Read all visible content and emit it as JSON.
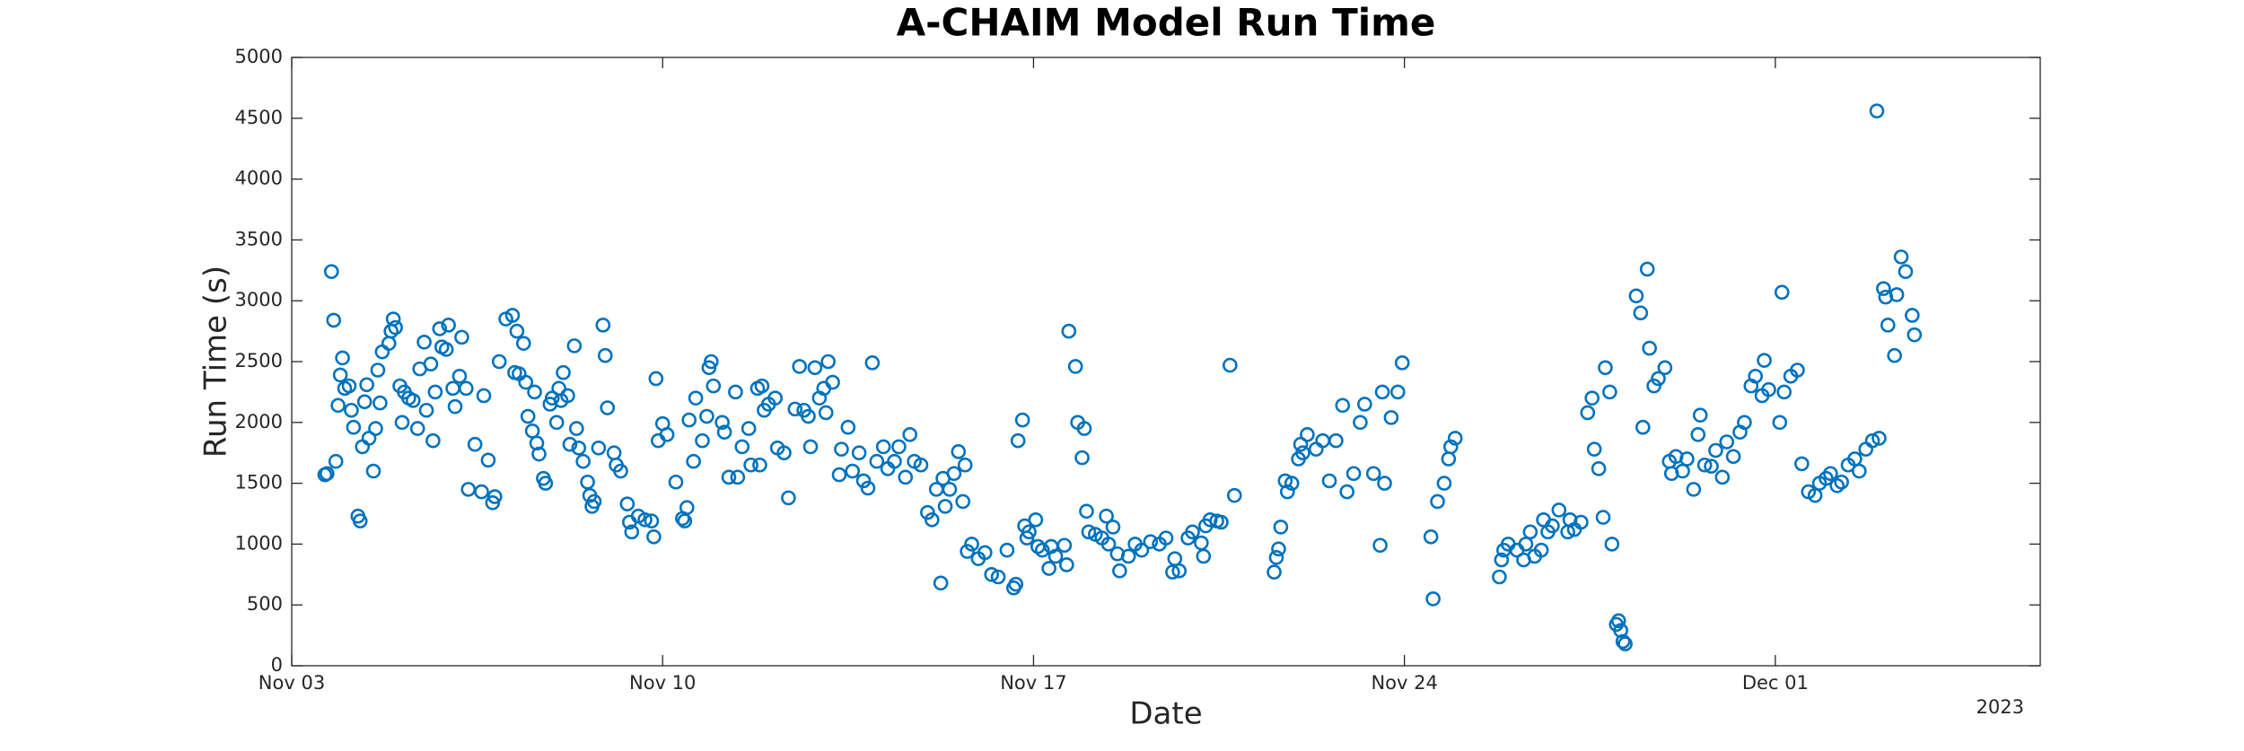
{
  "chart_data": {
    "type": "scatter",
    "title": "A-CHAIM Model Run Time",
    "xlabel": "Date",
    "ylabel": "Run Time (s)",
    "x_secondary_label": "2023",
    "color": "#0072BD",
    "xlim": [
      "2023-11-03T00:00Z",
      "2023-12-06T00:00Z"
    ],
    "xticks": [
      {
        "value": "2023-11-03T00:00Z",
        "label": "Nov 03"
      },
      {
        "value": "2023-11-10T00:00Z",
        "label": "Nov 10"
      },
      {
        "value": "2023-11-17T00:00Z",
        "label": "Nov 17"
      },
      {
        "value": "2023-11-24T00:00Z",
        "label": "Nov 24"
      },
      {
        "value": "2023-12-01T00:00Z",
        "label": "Dec 01"
      }
    ],
    "ylim": [
      0,
      5000
    ],
    "yticks": [
      0,
      500,
      1000,
      1500,
      2000,
      2500,
      3000,
      3500,
      4000,
      4500,
      5000
    ],
    "x": [
      "2023-11-03T15:00Z",
      "2023-11-03T16:00Z",
      "2023-11-03T18:00Z",
      "2023-11-03T19:00Z",
      "2023-11-03T20:00Z",
      "2023-11-03T21:00Z",
      "2023-11-03T22:00Z",
      "2023-11-03T23:00Z",
      "2023-11-04T00:00Z",
      "2023-11-04T02:00Z",
      "2023-11-04T03:00Z",
      "2023-11-04T04:00Z",
      "2023-11-04T06:00Z",
      "2023-11-04T07:00Z",
      "2023-11-04T08:00Z",
      "2023-11-04T09:00Z",
      "2023-11-04T10:00Z",
      "2023-11-04T11:00Z",
      "2023-11-04T13:00Z",
      "2023-11-04T14:00Z",
      "2023-11-04T15:00Z",
      "2023-11-04T16:00Z",
      "2023-11-04T17:00Z",
      "2023-11-04T20:00Z",
      "2023-11-04T21:00Z",
      "2023-11-04T22:00Z",
      "2023-11-04T23:00Z",
      "2023-11-05T01:00Z",
      "2023-11-05T02:00Z",
      "2023-11-05T03:00Z",
      "2023-11-05T05:00Z",
      "2023-11-05T07:00Z",
      "2023-11-05T09:00Z",
      "2023-11-05T10:00Z",
      "2023-11-05T12:00Z",
      "2023-11-05T13:00Z",
      "2023-11-05T15:00Z",
      "2023-11-05T16:00Z",
      "2023-11-05T17:00Z",
      "2023-11-05T19:00Z",
      "2023-11-05T20:00Z",
      "2023-11-05T22:00Z",
      "2023-11-05T23:00Z",
      "2023-11-06T01:00Z",
      "2023-11-06T02:00Z",
      "2023-11-06T04:00Z",
      "2023-11-06T05:00Z",
      "2023-11-06T07:00Z",
      "2023-11-06T08:00Z",
      "2023-11-06T11:00Z",
      "2023-11-06T14:00Z",
      "2023-11-06T15:00Z",
      "2023-11-06T17:00Z",
      "2023-11-06T19:00Z",
      "2023-11-06T20:00Z",
      "2023-11-06T22:00Z",
      "2023-11-07T01:00Z",
      "2023-11-07T04:00Z",
      "2023-11-07T05:00Z",
      "2023-11-07T06:00Z",
      "2023-11-07T07:00Z",
      "2023-11-07T09:00Z",
      "2023-11-07T10:00Z",
      "2023-11-07T11:00Z",
      "2023-11-07T13:00Z",
      "2023-11-07T14:00Z",
      "2023-11-07T15:00Z",
      "2023-11-07T16:00Z",
      "2023-11-07T18:00Z",
      "2023-11-07T19:00Z",
      "2023-11-07T21:00Z",
      "2023-11-07T22:00Z",
      "2023-11-08T00:00Z",
      "2023-11-08T01:00Z",
      "2023-11-08T02:00Z",
      "2023-11-08T03:00Z",
      "2023-11-08T05:00Z",
      "2023-11-08T06:00Z",
      "2023-11-08T08:00Z",
      "2023-11-08T09:00Z",
      "2023-11-08T10:00Z",
      "2023-11-08T12:00Z",
      "2023-11-08T14:00Z",
      "2023-11-08T15:00Z",
      "2023-11-08T16:00Z",
      "2023-11-08T17:00Z",
      "2023-11-08T19:00Z",
      "2023-11-08T21:00Z",
      "2023-11-08T22:00Z",
      "2023-11-08T23:00Z",
      "2023-11-09T02:00Z",
      "2023-11-09T03:00Z",
      "2023-11-09T05:00Z",
      "2023-11-09T08:00Z",
      "2023-11-09T09:00Z",
      "2023-11-09T10:00Z",
      "2023-11-09T13:00Z",
      "2023-11-09T16:00Z",
      "2023-11-09T19:00Z",
      "2023-11-09T20:00Z",
      "2023-11-09T21:00Z",
      "2023-11-09T22:00Z",
      "2023-11-10T00:00Z",
      "2023-11-10T02:00Z",
      "2023-11-10T06:00Z",
      "2023-11-10T09:00Z",
      "2023-11-10T10:00Z",
      "2023-11-10T11:00Z",
      "2023-11-10T12:00Z",
      "2023-11-10T14:00Z",
      "2023-11-10T15:00Z",
      "2023-11-10T18:00Z",
      "2023-11-10T20:00Z",
      "2023-11-10T21:00Z",
      "2023-11-10T22:00Z",
      "2023-11-10T23:00Z",
      "2023-11-11T03:00Z",
      "2023-11-11T04:00Z",
      "2023-11-11T06:00Z",
      "2023-11-11T09:00Z",
      "2023-11-11T10:00Z",
      "2023-11-11T12:00Z",
      "2023-11-11T15:00Z",
      "2023-11-11T16:00Z",
      "2023-11-11T19:00Z",
      "2023-11-11T20:00Z",
      "2023-11-11T21:00Z",
      "2023-11-11T22:00Z",
      "2023-11-12T00:00Z",
      "2023-11-12T03:00Z",
      "2023-11-12T04:00Z",
      "2023-11-12T07:00Z",
      "2023-11-12T09:00Z",
      "2023-11-12T12:00Z",
      "2023-11-12T14:00Z",
      "2023-11-12T16:00Z",
      "2023-11-12T18:00Z",
      "2023-11-12T19:00Z",
      "2023-11-12T21:00Z",
      "2023-11-12T23:00Z",
      "2023-11-13T01:00Z",
      "2023-11-13T02:00Z",
      "2023-11-13T03:00Z",
      "2023-11-13T05:00Z",
      "2023-11-13T08:00Z",
      "2023-11-13T09:00Z",
      "2023-11-13T12:00Z",
      "2023-11-13T14:00Z",
      "2023-11-13T17:00Z",
      "2023-11-13T19:00Z",
      "2023-11-13T21:00Z",
      "2023-11-13T23:00Z",
      "2023-11-14T01:00Z",
      "2023-11-14T04:00Z",
      "2023-11-14T06:00Z",
      "2023-11-14T09:00Z",
      "2023-11-14T11:00Z",
      "2023-11-14T14:00Z",
      "2023-11-14T16:00Z",
      "2023-11-14T18:00Z",
      "2023-11-14T21:00Z",
      "2023-11-15T00:00Z",
      "2023-11-15T02:00Z",
      "2023-11-15T04:00Z",
      "2023-11-15T06:00Z",
      "2023-11-15T07:00Z",
      "2023-11-15T08:00Z",
      "2023-11-15T10:00Z",
      "2023-11-15T12:00Z",
      "2023-11-15T14:00Z",
      "2023-11-15T16:00Z",
      "2023-11-15T17:00Z",
      "2023-11-15T18:00Z",
      "2023-11-15T20:00Z",
      "2023-11-15T23:00Z",
      "2023-11-16T02:00Z",
      "2023-11-16T05:00Z",
      "2023-11-16T08:00Z",
      "2023-11-16T12:00Z",
      "2023-11-16T15:00Z",
      "2023-11-16T16:00Z",
      "2023-11-16T17:00Z",
      "2023-11-16T19:00Z",
      "2023-11-16T20:00Z",
      "2023-11-16T21:00Z",
      "2023-11-16T22:00Z",
      "2023-11-17T01:00Z",
      "2023-11-17T02:00Z",
      "2023-11-17T04:00Z",
      "2023-11-17T07:00Z",
      "2023-11-17T08:00Z",
      "2023-11-17T10:00Z",
      "2023-11-17T14:00Z",
      "2023-11-17T15:00Z",
      "2023-11-17T16:00Z",
      "2023-11-17T19:00Z",
      "2023-11-17T20:00Z",
      "2023-11-17T22:00Z",
      "2023-11-17T23:00Z",
      "2023-11-18T00:00Z",
      "2023-11-18T01:00Z",
      "2023-11-18T04:00Z",
      "2023-11-18T07:00Z",
      "2023-11-18T09:00Z",
      "2023-11-18T10:00Z",
      "2023-11-18T12:00Z",
      "2023-11-18T14:00Z",
      "2023-11-18T15:00Z",
      "2023-11-18T19:00Z",
      "2023-11-18T22:00Z",
      "2023-11-19T01:00Z",
      "2023-11-19T05:00Z",
      "2023-11-19T09:00Z",
      "2023-11-19T12:00Z",
      "2023-11-19T15:00Z",
      "2023-11-19T16:00Z",
      "2023-11-19T18:00Z",
      "2023-11-19T22:00Z",
      "2023-11-20T00:00Z",
      "2023-11-20T04:00Z",
      "2023-11-20T05:00Z",
      "2023-11-20T06:00Z",
      "2023-11-20T08:00Z",
      "2023-11-20T11:00Z",
      "2023-11-20T13:00Z",
      "2023-11-20T17:00Z",
      "2023-11-20T19:00Z",
      "2023-11-21T13:00Z",
      "2023-11-21T14:00Z",
      "2023-11-21T15:00Z",
      "2023-11-21T16:00Z",
      "2023-11-21T18:00Z",
      "2023-11-21T19:00Z",
      "2023-11-21T21:00Z",
      "2023-11-22T00:00Z",
      "2023-11-22T01:00Z",
      "2023-11-22T02:00Z",
      "2023-11-22T04:00Z",
      "2023-11-22T08:00Z",
      "2023-11-22T11:00Z",
      "2023-11-22T14:00Z",
      "2023-11-22T17:00Z",
      "2023-11-22T20:00Z",
      "2023-11-22T22:00Z",
      "2023-11-23T01:00Z",
      "2023-11-23T04:00Z",
      "2023-11-23T06:00Z",
      "2023-11-23T10:00Z",
      "2023-11-23T13:00Z",
      "2023-11-23T14:00Z",
      "2023-11-23T15:00Z",
      "2023-11-23T18:00Z",
      "2023-11-23T21:00Z",
      "2023-11-23T23:00Z",
      "2023-11-24T12:00Z",
      "2023-11-24T13:00Z",
      "2023-11-24T15:00Z",
      "2023-11-24T18:00Z",
      "2023-11-24T20:00Z",
      "2023-11-24T21:00Z",
      "2023-11-24T23:00Z",
      "2023-11-25T19:00Z",
      "2023-11-25T20:00Z",
      "2023-11-25T21:00Z",
      "2023-11-25T23:00Z",
      "2023-11-26T03:00Z",
      "2023-11-26T06:00Z",
      "2023-11-26T07:00Z",
      "2023-11-26T09:00Z",
      "2023-11-26T11:00Z",
      "2023-11-26T14:00Z",
      "2023-11-26T15:00Z",
      "2023-11-26T17:00Z",
      "2023-11-26T19:00Z",
      "2023-11-26T22:00Z",
      "2023-11-27T02:00Z",
      "2023-11-27T03:00Z",
      "2023-11-27T05:00Z",
      "2023-11-27T08:00Z",
      "2023-11-27T11:00Z",
      "2023-11-27T13:00Z",
      "2023-11-27T14:00Z",
      "2023-11-27T16:00Z",
      "2023-11-27T18:00Z",
      "2023-11-27T19:00Z",
      "2023-11-27T21:00Z",
      "2023-11-27T22:00Z",
      "2023-11-28T00:00Z",
      "2023-11-28T01:00Z",
      "2023-11-28T02:00Z",
      "2023-11-28T03:00Z",
      "2023-11-28T04:00Z",
      "2023-11-28T09:00Z",
      "2023-11-28T11:00Z",
      "2023-11-28T12:00Z",
      "2023-11-28T14:00Z",
      "2023-11-28T15:00Z",
      "2023-11-28T17:00Z",
      "2023-11-28T19:00Z",
      "2023-11-28T22:00Z",
      "2023-11-29T00:00Z",
      "2023-11-29T01:00Z",
      "2023-11-29T03:00Z",
      "2023-11-29T06:00Z",
      "2023-11-29T08:00Z",
      "2023-11-29T11:00Z",
      "2023-11-29T13:00Z",
      "2023-11-29T14:00Z",
      "2023-11-29T16:00Z",
      "2023-11-29T19:00Z",
      "2023-11-29T21:00Z",
      "2023-11-30T00:00Z",
      "2023-11-30T02:00Z",
      "2023-11-30T05:00Z",
      "2023-11-30T08:00Z",
      "2023-11-30T10:00Z",
      "2023-11-30T13:00Z",
      "2023-11-30T15:00Z",
      "2023-11-30T18:00Z",
      "2023-11-30T19:00Z",
      "2023-11-30T21:00Z",
      "2023-12-01T02:00Z",
      "2023-12-01T03:00Z",
      "2023-12-01T04:00Z",
      "2023-12-01T07:00Z",
      "2023-12-01T10:00Z",
      "2023-12-01T12:00Z",
      "2023-12-01T15:00Z",
      "2023-12-01T18:00Z",
      "2023-12-01T20:00Z",
      "2023-12-01T23:00Z",
      "2023-12-02T01:00Z",
      "2023-12-02T04:00Z",
      "2023-12-02T06:00Z",
      "2023-12-02T09:00Z",
      "2023-12-02T12:00Z",
      "2023-12-02T14:00Z",
      "2023-12-02T17:00Z",
      "2023-12-02T20:00Z",
      "2023-12-02T22:00Z",
      "2023-12-02T23:00Z",
      "2023-12-03T01:00Z",
      "2023-12-03T02:00Z",
      "2023-12-03T03:00Z",
      "2023-12-03T06:00Z",
      "2023-12-03T07:00Z",
      "2023-12-03T09:00Z",
      "2023-12-03T11:00Z",
      "2023-12-03T14:00Z",
      "2023-12-03T15:00Z"
    ],
    "values": [
      1570,
      1580,
      3240,
      2840,
      1680,
      2140,
      2390,
      2530,
      2280,
      2300,
      2100,
      1960,
      1230,
      1190,
      1800,
      2170,
      2310,
      1870,
      1600,
      1950,
      2430,
      2160,
      2580,
      2650,
      2750,
      2850,
      2780,
      2300,
      2000,
      2250,
      2200,
      2180,
      1950,
      2440,
      2660,
      2100,
      2480,
      1850,
      2250,
      2770,
      2620,
      2600,
      2800,
      2280,
      2130,
      2380,
      2700,
      2280,
      1450,
      1820,
      1430,
      2220,
      1690,
      1340,
      1390,
      2500,
      2850,
      2880,
      2410,
      2750,
      2400,
      2650,
      2330,
      2050,
      1930,
      2250,
      1830,
      1740,
      1540,
      1500,
      2150,
      2200,
      2000,
      2280,
      2180,
      2410,
      2220,
      1820,
      2630,
      1950,
      1790,
      1680,
      1510,
      1400,
      1310,
      1350,
      1790,
      2800,
      2550,
      2120,
      1750,
      1650,
      1600,
      1330,
      1180,
      1100,
      1230,
      1200,
      1190,
      1060,
      2360,
      1850,
      1990,
      1900,
      1510,
      1210,
      1190,
      1300,
      2020,
      1680,
      2200,
      1850,
      2050,
      2450,
      2500,
      2300,
      2000,
      1920,
      1550,
      2250,
      1550,
      1800,
      1950,
      1650,
      2280,
      1650,
      2300,
      2100,
      2150,
      2200,
      1790,
      1750,
      1380,
      2110,
      2460,
      2100,
      2050,
      1800,
      2450,
      2200,
      2280,
      2080,
      2500,
      2330,
      1570,
      1780,
      1960,
      1600,
      1750,
      1520,
      1460,
      2490,
      1680,
      1800,
      1620,
      1680,
      1800,
      1550,
      1900,
      1680,
      1650,
      1260,
      1200,
      1450,
      680,
      1540,
      1310,
      1450,
      1580,
      1760,
      1350,
      1650,
      940,
      1000,
      880,
      930,
      750,
      730,
      950,
      640,
      670,
      1850,
      2020,
      1150,
      1050,
      1100,
      1200,
      980,
      950,
      800,
      980,
      900,
      990,
      830,
      2750,
      2460,
      2000,
      1710,
      1950,
      1270,
      1100,
      1080,
      1050,
      1230,
      1000,
      1140,
      920,
      780,
      900,
      1000,
      950,
      1020,
      1000,
      1050,
      770,
      880,
      780,
      1050,
      1100,
      1010,
      900,
      1150,
      1200,
      1190,
      1180,
      2470,
      1400,
      770,
      890,
      960,
      1140,
      1520,
      1430,
      1500,
      1700,
      1820,
      1750,
      1900,
      1780,
      1850,
      1520,
      1850,
      2140,
      1430,
      1580,
      2000,
      2150,
      1580,
      990,
      2250,
      1500,
      2040,
      2250,
      2490,
      1060,
      550,
      1350,
      1500,
      1700,
      1800,
      1870,
      730,
      870,
      950,
      1000,
      950,
      870,
      1000,
      1100,
      900,
      950,
      1200,
      1100,
      1150,
      1280,
      1100,
      1200,
      1120,
      1180,
      2080,
      2200,
      1780,
      1620,
      1220,
      2450,
      2250,
      1000,
      340,
      370,
      290,
      200,
      180,
      3040,
      2900,
      1960,
      3260,
      2610,
      2300,
      2360,
      2450,
      1680,
      1580,
      1720,
      1600,
      1700,
      1450,
      1900,
      2060,
      1650,
      1640,
      1770,
      1550,
      1840,
      1720,
      1920,
      2000,
      2300,
      2380,
      2220,
      2510,
      2270,
      2000,
      3070,
      2250,
      2380,
      2430,
      1660,
      1430,
      1400,
      1500,
      1540,
      1580,
      1480,
      1510,
      1650,
      1700,
      1600,
      1780,
      1850,
      4560,
      1870,
      3100,
      3030,
      2800,
      2550,
      3050,
      3360,
      3240,
      2880,
      2720
    ]
  }
}
